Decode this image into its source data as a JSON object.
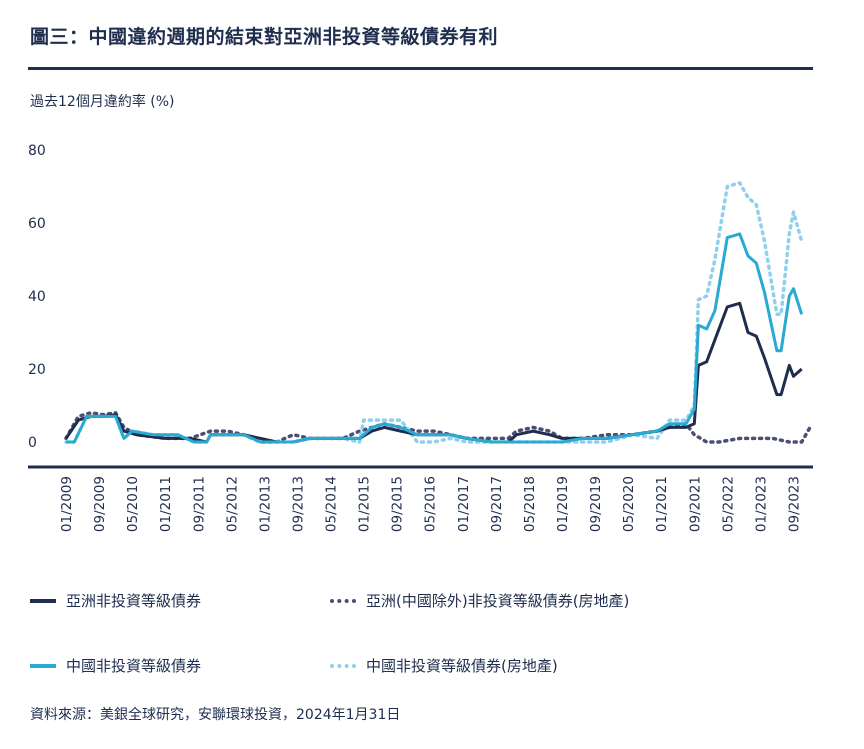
{
  "header": {
    "title": "圖三：中國違約週期的結束對亞洲非投資等級債券有利",
    "ylabel": "過去12個月違約率 (%)"
  },
  "footer": {
    "source": "資料來源：美銀全球研究，安聯環球投資，2024年1月31日"
  },
  "colors": {
    "navy": "#1f2d4e",
    "cyan": "#29aad2",
    "light_blue": "#8fd0ec",
    "slate": "#4a4f74"
  },
  "chart_data": {
    "type": "line",
    "title": "圖三：中國違約週期的結束對亞洲非投資等級債券有利",
    "ylabel": "過去12個月違約率 (%)",
    "ylim": [
      0,
      80
    ],
    "yticks": [
      0,
      20,
      40,
      60,
      80
    ],
    "xlim": [
      "2009-01",
      "2024-01"
    ],
    "xticks": [
      "01/2009",
      "09/2009",
      "05/2010",
      "01/2011",
      "09/2011",
      "05/2012",
      "01/2013",
      "09/2013",
      "05/2014",
      "01/2015",
      "09/2015",
      "05/2016",
      "01/2017",
      "09/2017",
      "05/2018",
      "01/2019",
      "09/2019",
      "05/2020",
      "01/2021",
      "09/2021",
      "05/2022",
      "01/2023",
      "09/2023"
    ],
    "legend_placement": "bottom",
    "series": [
      {
        "name": "亞洲非投資等級債券",
        "style": "solid",
        "color": "#1f2d4e",
        "points": [
          [
            "2009-01",
            1
          ],
          [
            "2009-04",
            6
          ],
          [
            "2009-07",
            7
          ],
          [
            "2009-10",
            7
          ],
          [
            "2010-01",
            7.5
          ],
          [
            "2010-03",
            3
          ],
          [
            "2010-06",
            2
          ],
          [
            "2011-01",
            1
          ],
          [
            "2011-07",
            1
          ],
          [
            "2011-11",
            0
          ],
          [
            "2011-12",
            2
          ],
          [
            "2012-04",
            2
          ],
          [
            "2012-08",
            2
          ],
          [
            "2012-12",
            1
          ],
          [
            "2013-04",
            0
          ],
          [
            "2013-08",
            0
          ],
          [
            "2013-12",
            1
          ],
          [
            "2014-04",
            1
          ],
          [
            "2014-08",
            1
          ],
          [
            "2014-12",
            1
          ],
          [
            "2015-03",
            3
          ],
          [
            "2015-06",
            4
          ],
          [
            "2015-10",
            3
          ],
          [
            "2016-02",
            2
          ],
          [
            "2016-06",
            2
          ],
          [
            "2016-10",
            2
          ],
          [
            "2017-02",
            1
          ],
          [
            "2017-08",
            0
          ],
          [
            "2017-12",
            0
          ],
          [
            "2018-02",
            2
          ],
          [
            "2018-06",
            3
          ],
          [
            "2018-10",
            2
          ],
          [
            "2019-01",
            1
          ],
          [
            "2019-06",
            1
          ],
          [
            "2019-12",
            1
          ],
          [
            "2020-06",
            2
          ],
          [
            "2020-12",
            3
          ],
          [
            "2021-03",
            4
          ],
          [
            "2021-07",
            4
          ],
          [
            "2021-09",
            5
          ],
          [
            "2021-10",
            21
          ],
          [
            "2021-12",
            22
          ],
          [
            "2022-02",
            28
          ],
          [
            "2022-05",
            37
          ],
          [
            "2022-08",
            38
          ],
          [
            "2022-10",
            30
          ],
          [
            "2022-12",
            29
          ],
          [
            "2023-02",
            23
          ],
          [
            "2023-05",
            13
          ],
          [
            "2023-06",
            13
          ],
          [
            "2023-08",
            21
          ],
          [
            "2023-09",
            18
          ],
          [
            "2023-11",
            20
          ]
        ]
      },
      {
        "name": "亞洲(中國除外)非投資等級債券(房地產)",
        "style": "dotted",
        "color": "#4a4f74",
        "points": [
          [
            "2009-01",
            1
          ],
          [
            "2009-04",
            7
          ],
          [
            "2009-07",
            8
          ],
          [
            "2009-10",
            7.5
          ],
          [
            "2010-01",
            8
          ],
          [
            "2010-03",
            4
          ],
          [
            "2010-06",
            2
          ],
          [
            "2011-01",
            1
          ],
          [
            "2011-07",
            1
          ],
          [
            "2011-12",
            3
          ],
          [
            "2012-04",
            3
          ],
          [
            "2012-08",
            2
          ],
          [
            "2012-12",
            0
          ],
          [
            "2013-04",
            0
          ],
          [
            "2013-08",
            2
          ],
          [
            "2013-12",
            1
          ],
          [
            "2014-04",
            1
          ],
          [
            "2014-08",
            1
          ],
          [
            "2014-12",
            3
          ],
          [
            "2015-03",
            4
          ],
          [
            "2015-06",
            5
          ],
          [
            "2015-10",
            4
          ],
          [
            "2016-02",
            3
          ],
          [
            "2016-06",
            3
          ],
          [
            "2016-10",
            2
          ],
          [
            "2017-02",
            1
          ],
          [
            "2017-08",
            1
          ],
          [
            "2017-12",
            1
          ],
          [
            "2018-02",
            3
          ],
          [
            "2018-06",
            4
          ],
          [
            "2018-10",
            3
          ],
          [
            "2019-01",
            1
          ],
          [
            "2019-06",
            1
          ],
          [
            "2019-12",
            2
          ],
          [
            "2020-06",
            2
          ],
          [
            "2020-12",
            3
          ],
          [
            "2021-03",
            4
          ],
          [
            "2021-07",
            5
          ],
          [
            "2021-09",
            2
          ],
          [
            "2021-12",
            0
          ],
          [
            "2022-03",
            0
          ],
          [
            "2022-08",
            1
          ],
          [
            "2022-12",
            1
          ],
          [
            "2023-04",
            1
          ],
          [
            "2023-08",
            0
          ],
          [
            "2023-11",
            0
          ],
          [
            "2024-01",
            4
          ]
        ]
      },
      {
        "name": "中國非投資等級債券",
        "style": "solid",
        "color": "#29aad2",
        "points": [
          [
            "2009-01",
            0
          ],
          [
            "2009-03",
            0
          ],
          [
            "2009-06",
            7
          ],
          [
            "2009-10",
            7
          ],
          [
            "2010-01",
            7
          ],
          [
            "2010-03",
            1
          ],
          [
            "2010-05",
            3
          ],
          [
            "2010-10",
            2
          ],
          [
            "2011-04",
            2
          ],
          [
            "2011-08",
            0
          ],
          [
            "2011-11",
            0
          ],
          [
            "2011-12",
            2
          ],
          [
            "2012-04",
            2
          ],
          [
            "2012-08",
            2
          ],
          [
            "2012-12",
            0
          ],
          [
            "2013-04",
            0
          ],
          [
            "2013-08",
            0
          ],
          [
            "2013-12",
            1
          ],
          [
            "2014-04",
            1
          ],
          [
            "2014-08",
            1
          ],
          [
            "2014-12",
            1
          ],
          [
            "2015-03",
            4
          ],
          [
            "2015-06",
            5
          ],
          [
            "2015-10",
            4
          ],
          [
            "2016-02",
            2
          ],
          [
            "2016-06",
            2
          ],
          [
            "2016-10",
            2
          ],
          [
            "2017-02",
            1
          ],
          [
            "2017-08",
            0
          ],
          [
            "2017-12",
            0
          ],
          [
            "2018-02",
            0
          ],
          [
            "2018-06",
            0
          ],
          [
            "2018-10",
            0
          ],
          [
            "2019-01",
            0
          ],
          [
            "2019-06",
            1
          ],
          [
            "2019-12",
            1
          ],
          [
            "2020-06",
            2
          ],
          [
            "2020-12",
            3
          ],
          [
            "2021-03",
            5
          ],
          [
            "2021-07",
            5
          ],
          [
            "2021-09",
            9
          ],
          [
            "2021-10",
            32
          ],
          [
            "2021-12",
            31
          ],
          [
            "2022-02",
            36
          ],
          [
            "2022-05",
            56
          ],
          [
            "2022-08",
            57
          ],
          [
            "2022-10",
            51
          ],
          [
            "2022-12",
            49
          ],
          [
            "2023-02",
            41
          ],
          [
            "2023-05",
            25
          ],
          [
            "2023-06",
            25
          ],
          [
            "2023-08",
            40
          ],
          [
            "2023-09",
            42
          ],
          [
            "2023-11",
            35
          ]
        ]
      },
      {
        "name": "中國非投資等級債券(房地產)",
        "style": "dotted",
        "color": "#8fd0ec",
        "points": [
          [
            "2009-01",
            0
          ],
          [
            "2009-03",
            0
          ],
          [
            "2009-06",
            7
          ],
          [
            "2009-10",
            7
          ],
          [
            "2010-01",
            7
          ],
          [
            "2010-03",
            1
          ],
          [
            "2010-05",
            3
          ],
          [
            "2010-10",
            2
          ],
          [
            "2011-04",
            2
          ],
          [
            "2011-08",
            0
          ],
          [
            "2011-11",
            0
          ],
          [
            "2011-12",
            2
          ],
          [
            "2012-04",
            2
          ],
          [
            "2012-08",
            2
          ],
          [
            "2012-12",
            0
          ],
          [
            "2013-04",
            0
          ],
          [
            "2013-08",
            0
          ],
          [
            "2013-12",
            1
          ],
          [
            "2014-04",
            1
          ],
          [
            "2014-08",
            1
          ],
          [
            "2014-12",
            0
          ],
          [
            "2015-01",
            6
          ],
          [
            "2015-06",
            6
          ],
          [
            "2015-10",
            6
          ],
          [
            "2016-02",
            0
          ],
          [
            "2016-06",
            0
          ],
          [
            "2016-10",
            1
          ],
          [
            "2017-02",
            0
          ],
          [
            "2017-08",
            0
          ],
          [
            "2017-12",
            0
          ],
          [
            "2018-02",
            0
          ],
          [
            "2018-06",
            0
          ],
          [
            "2018-10",
            0
          ],
          [
            "2019-01",
            0
          ],
          [
            "2019-06",
            0
          ],
          [
            "2019-12",
            0
          ],
          [
            "2020-06",
            2
          ],
          [
            "2020-12",
            1
          ],
          [
            "2021-03",
            6
          ],
          [
            "2021-07",
            6
          ],
          [
            "2021-09",
            10
          ],
          [
            "2021-10",
            39
          ],
          [
            "2021-12",
            40
          ],
          [
            "2022-02",
            50
          ],
          [
            "2022-05",
            70
          ],
          [
            "2022-08",
            71
          ],
          [
            "2022-10",
            67
          ],
          [
            "2022-12",
            65
          ],
          [
            "2023-02",
            55
          ],
          [
            "2023-05",
            35
          ],
          [
            "2023-06",
            35
          ],
          [
            "2023-08",
            57
          ],
          [
            "2023-09",
            63
          ],
          [
            "2023-11",
            55
          ]
        ]
      }
    ]
  }
}
